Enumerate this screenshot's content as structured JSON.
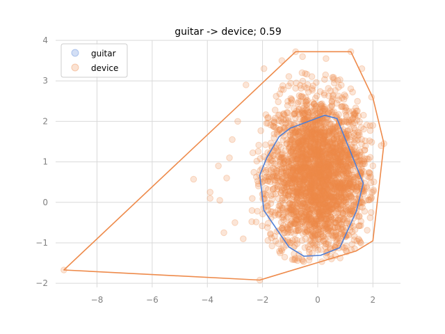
{
  "chart_data": {
    "type": "scatter",
    "title": "guitar -> device; 0.59",
    "xlabel": "",
    "ylabel": "",
    "xlim": [
      -9.5,
      3.0
    ],
    "ylim": [
      -2.1,
      4.0
    ],
    "x_ticks": [
      -8,
      -6,
      -4,
      -2,
      0,
      2
    ],
    "y_ticks": [
      -2,
      -1,
      0,
      1,
      2,
      3,
      4
    ],
    "x_tick_labels": [
      "−8",
      "−6",
      "−4",
      "−2",
      "0",
      "2"
    ],
    "y_tick_labels": [
      "−2",
      "−1",
      "0",
      "1",
      "2",
      "3",
      "4"
    ],
    "grid": true,
    "legend_position": "top-left",
    "series": [
      {
        "name": "guitar",
        "color": "#4f7fd6",
        "hull": [
          [
            0.25,
            2.15
          ],
          [
            0.7,
            2.07
          ],
          [
            1.65,
            0.47
          ],
          [
            1.4,
            -0.22
          ],
          [
            0.8,
            -1.12
          ],
          [
            0.1,
            -1.31
          ],
          [
            -0.5,
            -1.33
          ],
          [
            -1.05,
            -1.1
          ],
          [
            -1.95,
            -0.2
          ],
          [
            -2.1,
            0.67
          ],
          [
            -1.85,
            1.1
          ],
          [
            -1.4,
            1.62
          ],
          [
            -1.0,
            1.83
          ]
        ]
      },
      {
        "name": "device",
        "color": "#ee8a4a",
        "hull": [
          [
            -0.8,
            3.72
          ],
          [
            1.2,
            3.72
          ],
          [
            2.0,
            2.58
          ],
          [
            2.4,
            1.45
          ],
          [
            2.0,
            -0.95
          ],
          [
            1.4,
            -1.2
          ],
          [
            -2.1,
            -1.92
          ],
          [
            -9.2,
            -1.67
          ]
        ],
        "cloud": {
          "cx": 0.0,
          "cy": 0.7,
          "sx": 0.9,
          "sy": 1.0
        },
        "outliers": [
          [
            -4.5,
            0.57
          ],
          [
            -3.55,
            0.05
          ],
          [
            -3.6,
            0.9
          ],
          [
            -3.4,
            -0.75
          ],
          [
            -3.1,
            1.55
          ],
          [
            -2.9,
            2.0
          ],
          [
            -3.3,
            0.6
          ],
          [
            -3.9,
            0.25
          ],
          [
            -3.9,
            0.1
          ],
          [
            -2.6,
            2.9
          ],
          [
            -1.95,
            3.3
          ],
          [
            -1.3,
            3.5
          ],
          [
            -0.55,
            3.6
          ],
          [
            0.3,
            3.55
          ],
          [
            1.6,
            3.3
          ],
          [
            1.95,
            2.6
          ],
          [
            2.3,
            1.4
          ],
          [
            -9.2,
            -1.67
          ],
          [
            -2.1,
            -1.92
          ],
          [
            -0.8,
            3.72
          ],
          [
            1.2,
            3.72
          ],
          [
            2.4,
            1.45
          ],
          [
            2.0,
            1.9
          ],
          [
            -3.0,
            -0.5
          ],
          [
            -2.7,
            -0.9
          ],
          [
            -3.2,
            1.1
          ]
        ]
      }
    ]
  }
}
